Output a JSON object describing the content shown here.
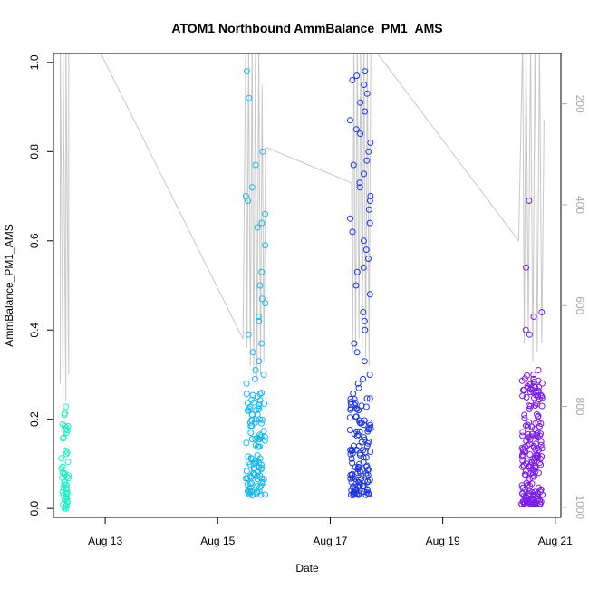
{
  "chart_data": {
    "type": "scatter",
    "title": "ATOM1 Northbound AmmBalance_PM1_AMS",
    "xlabel": "Date",
    "ylabel": "AmmBalance_PM1_AMS",
    "xlim": [
      12.08,
      21.1
    ],
    "ylim": [
      -0.02,
      1.02
    ],
    "x_ticks": [
      {
        "value": 13,
        "label": "Aug 13"
      },
      {
        "value": 15,
        "label": "Aug 15"
      },
      {
        "value": 17,
        "label": "Aug 17"
      },
      {
        "value": 19,
        "label": "Aug 19"
      },
      {
        "value": 21,
        "label": "Aug 21"
      }
    ],
    "y_ticks": [
      {
        "value": 0.0,
        "label": "0.0"
      },
      {
        "value": 0.2,
        "label": "0.2"
      },
      {
        "value": 0.4,
        "label": "0.4"
      },
      {
        "value": 0.6,
        "label": "0.6"
      },
      {
        "value": 0.8,
        "label": "0.8"
      },
      {
        "value": 1.0,
        "label": "1.0"
      }
    ],
    "right_axis": {
      "lim": [
        1020,
        100
      ],
      "ticks": [
        {
          "value": 200,
          "label": "200"
        },
        {
          "value": 400,
          "label": "400"
        },
        {
          "value": 600,
          "label": "600"
        },
        {
          "value": 800,
          "label": "800"
        },
        {
          "value": 1000,
          "label": "1000"
        }
      ],
      "series_color": "#c8c8c8"
    },
    "clusters": [
      {
        "name": "Aug 12",
        "x_start": 12.22,
        "x_end": 12.35,
        "y_min": 0.0,
        "y_max": 0.23,
        "high_values": [],
        "color": "#19f2c6",
        "count": 50
      },
      {
        "name": "Aug 15",
        "x_start": 15.5,
        "x_end": 15.85,
        "y_min": 0.03,
        "y_max": 0.26,
        "high_values": [
          0.98,
          0.92,
          0.8,
          0.77,
          0.72,
          0.7,
          0.69,
          0.66,
          0.64,
          0.63,
          0.59,
          0.53,
          0.5,
          0.47,
          0.46,
          0.43,
          0.42,
          0.39,
          0.37,
          0.35,
          0.33,
          0.31,
          0.3,
          0.29,
          0.28
        ],
        "color": "#16b9ee",
        "count": 130
      },
      {
        "name": "Aug 17",
        "x_start": 17.35,
        "x_end": 17.72,
        "y_min": 0.03,
        "y_max": 0.26,
        "high_values": [
          0.98,
          0.97,
          0.96,
          0.95,
          0.93,
          0.91,
          0.89,
          0.87,
          0.85,
          0.84,
          0.82,
          0.8,
          0.78,
          0.77,
          0.75,
          0.73,
          0.72,
          0.7,
          0.69,
          0.67,
          0.65,
          0.64,
          0.62,
          0.6,
          0.58,
          0.56,
          0.54,
          0.53,
          0.5,
          0.48,
          0.44,
          0.42,
          0.4,
          0.37,
          0.35,
          0.33,
          0.3,
          0.29,
          0.28,
          0.27
        ],
        "color": "#1f35e4",
        "count": 160
      },
      {
        "name": "Aug 20",
        "x_start": 20.4,
        "x_end": 20.78,
        "y_min": 0.01,
        "y_max": 0.3,
        "high_values": [
          0.69,
          0.54,
          0.44,
          0.43,
          0.4,
          0.39,
          0.31,
          0.3,
          0.29,
          0.28
        ],
        "color": "#7a1ce8",
        "count": 200
      }
    ],
    "line_path": [
      {
        "x": 12.2,
        "v": 0.28
      },
      {
        "x": 12.2,
        "v": 1.05
      },
      {
        "x": 12.25,
        "v": 0.25
      },
      {
        "x": 12.25,
        "v": 1.05
      },
      {
        "x": 12.3,
        "v": 0.24
      },
      {
        "x": 12.3,
        "v": 1.05
      },
      {
        "x": 12.35,
        "v": 0.3
      },
      {
        "x": 12.35,
        "v": 1.05
      },
      {
        "x": 12.92,
        "v": 1.02
      },
      {
        "x": 15.45,
        "v": 0.38
      },
      {
        "x": 15.5,
        "v": 1.05
      },
      {
        "x": 15.52,
        "v": 0.36
      },
      {
        "x": 15.55,
        "v": 1.05
      },
      {
        "x": 15.58,
        "v": 0.32
      },
      {
        "x": 15.61,
        "v": 1.05
      },
      {
        "x": 15.64,
        "v": 0.3
      },
      {
        "x": 15.67,
        "v": 1.05
      },
      {
        "x": 15.7,
        "v": 0.29
      },
      {
        "x": 15.73,
        "v": 1.05
      },
      {
        "x": 15.76,
        "v": 0.3
      },
      {
        "x": 15.79,
        "v": 0.95
      },
      {
        "x": 15.82,
        "v": 0.33
      },
      {
        "x": 15.85,
        "v": 0.81
      },
      {
        "x": 17.38,
        "v": 0.73
      },
      {
        "x": 17.4,
        "v": 0.35
      },
      {
        "x": 17.42,
        "v": 1.05
      },
      {
        "x": 17.45,
        "v": 0.35
      },
      {
        "x": 17.48,
        "v": 1.05
      },
      {
        "x": 17.51,
        "v": 0.38
      },
      {
        "x": 17.54,
        "v": 1.05
      },
      {
        "x": 17.57,
        "v": 0.36
      },
      {
        "x": 17.6,
        "v": 1.05
      },
      {
        "x": 17.63,
        "v": 0.34
      },
      {
        "x": 17.66,
        "v": 1.05
      },
      {
        "x": 17.69,
        "v": 0.32
      },
      {
        "x": 17.72,
        "v": 1.04
      },
      {
        "x": 20.35,
        "v": 0.6
      },
      {
        "x": 20.42,
        "v": 1.05
      },
      {
        "x": 20.45,
        "v": 0.37
      },
      {
        "x": 20.48,
        "v": 1.05
      },
      {
        "x": 20.52,
        "v": 0.4
      },
      {
        "x": 20.56,
        "v": 1.05
      },
      {
        "x": 20.6,
        "v": 0.33
      },
      {
        "x": 20.64,
        "v": 1.05
      },
      {
        "x": 20.68,
        "v": 0.35
      },
      {
        "x": 20.72,
        "v": 1.05
      },
      {
        "x": 20.76,
        "v": 0.37
      },
      {
        "x": 20.8,
        "v": 0.87
      }
    ]
  }
}
